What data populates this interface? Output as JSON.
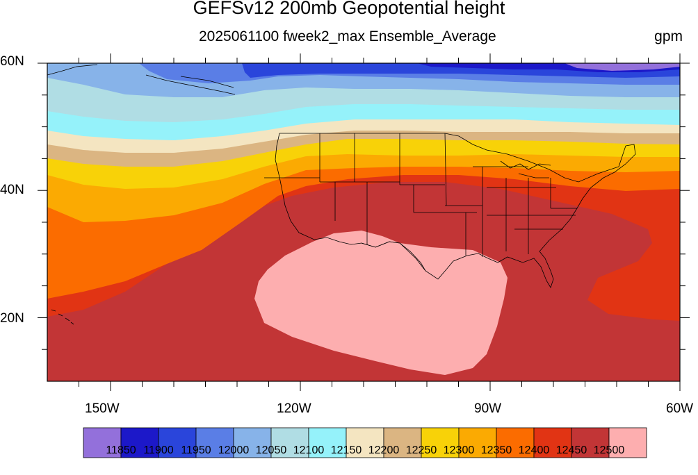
{
  "title": "GEFSv12 200mb Geopotential height",
  "subtitle": "2025061100 fweek2_max Ensemble_Average",
  "units": "gpm",
  "map": {
    "lat_labels": [
      "60N",
      "40N",
      "20N"
    ],
    "lon_labels": [
      "150W",
      "120W",
      "90W",
      "60W"
    ],
    "lat_range": [
      10,
      60
    ],
    "lon_range": [
      -160,
      -60
    ]
  },
  "colorbar": {
    "colors": [
      "#9370db",
      "#1c18c9",
      "#2a45db",
      "#5a7ee6",
      "#87b3e9",
      "#b0dde4",
      "#95f2fa",
      "#f4e5c1",
      "#dbb582",
      "#f8d208",
      "#fbaa02",
      "#fb6c00",
      "#e13414",
      "#c23536",
      "#fdaeaf"
    ],
    "labels": [
      "11850",
      "11900",
      "11950",
      "12000",
      "12050",
      "12100",
      "12150",
      "12200",
      "12250",
      "12300",
      "12350",
      "12400",
      "12450",
      "12500"
    ]
  }
}
